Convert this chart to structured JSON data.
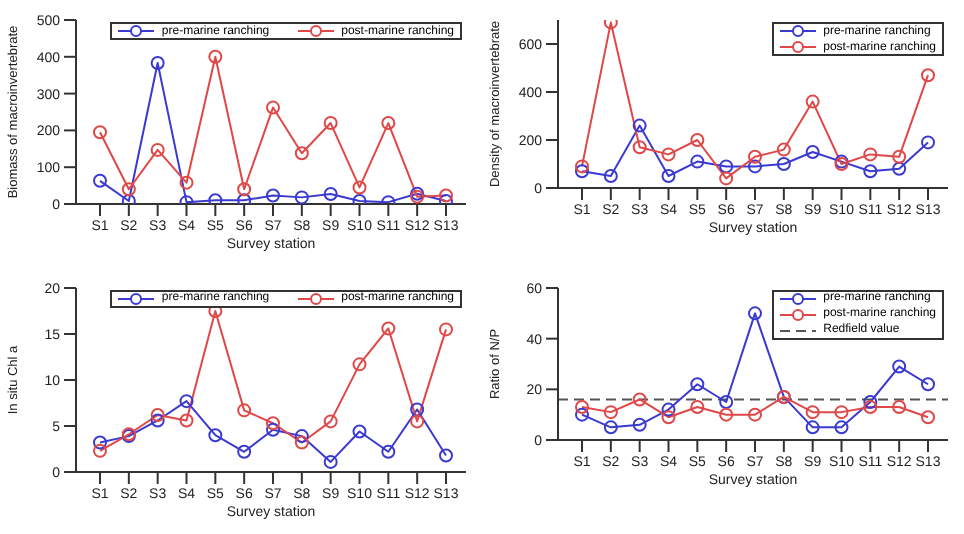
{
  "chart_data": [
    {
      "type": "line",
      "xlabel": "Survey station",
      "ylabel": "Biomass of macroinvertebrate",
      "categories": [
        "S1",
        "S2",
        "S3",
        "S4",
        "S5",
        "S6",
        "S7",
        "S8",
        "S9",
        "S10",
        "S11",
        "S12",
        "S13"
      ],
      "ylim": [
        0,
        500
      ],
      "yticks": [
        0,
        100,
        200,
        300,
        400,
        500
      ],
      "legend": "top",
      "marker": "circle",
      "line_style": "solid",
      "series": [
        {
          "name": "pre-marine ranching",
          "color": "#3a3ad0",
          "values": [
            63,
            8,
            383,
            5,
            10,
            10,
            23,
            18,
            27,
            8,
            5,
            28,
            8
          ]
        },
        {
          "name": "post-marine ranching",
          "color": "#e04848",
          "values": [
            195,
            40,
            147,
            58,
            400,
            40,
            262,
            138,
            220,
            45,
            220,
            20,
            23
          ]
        }
      ]
    },
    {
      "type": "line",
      "xlabel": "Survey station",
      "ylabel": "Density of macroinvertebrate",
      "categories": [
        "S1",
        "S2",
        "S3",
        "S4",
        "S5",
        "S6",
        "S7",
        "S8",
        "S9",
        "S10",
        "S11",
        "S12",
        "S13"
      ],
      "ylim": [
        0,
        700
      ],
      "yticks": [
        0,
        200,
        400,
        600
      ],
      "legend": "top right",
      "marker": "circle",
      "line_style": "solid",
      "series": [
        {
          "name": "pre-marine ranching",
          "color": "#3a3ad0",
          "values": [
            70,
            50,
            260,
            50,
            110,
            90,
            90,
            100,
            150,
            110,
            70,
            80,
            190
          ]
        },
        {
          "name": "post-marine ranching",
          "color": "#e04848",
          "values": [
            90,
            690,
            170,
            140,
            200,
            40,
            130,
            160,
            360,
            100,
            140,
            130,
            470
          ]
        }
      ]
    },
    {
      "type": "line",
      "xlabel": "Survey station",
      "ylabel": "In situ Chl a",
      "categories": [
        "S1",
        "S2",
        "S3",
        "S4",
        "S5",
        "S6",
        "S7",
        "S8",
        "S9",
        "S10",
        "S11",
        "S12",
        "S13"
      ],
      "ylim": [
        0,
        20
      ],
      "yticks": [
        0,
        5,
        10,
        15,
        20
      ],
      "legend": "top",
      "marker": "circle",
      "line_style": "solid",
      "series": [
        {
          "name": "pre-marine ranching",
          "color": "#3a3ad0",
          "values": [
            3.2,
            3.9,
            5.6,
            7.7,
            4.0,
            2.2,
            4.6,
            3.9,
            1.1,
            4.4,
            2.2,
            6.8,
            1.8
          ]
        },
        {
          "name": "post-marine ranching",
          "color": "#e04848",
          "values": [
            2.3,
            4.1,
            6.2,
            5.6,
            17.5,
            6.7,
            5.3,
            3.2,
            5.5,
            11.7,
            15.6,
            5.5,
            15.5
          ]
        }
      ]
    },
    {
      "type": "line",
      "xlabel": "Survey station",
      "ylabel": "Ratio of N/P",
      "categories": [
        "S1",
        "S2",
        "S3",
        "S4",
        "S5",
        "S6",
        "S7",
        "S8",
        "S9",
        "S10",
        "S11",
        "S12",
        "S13"
      ],
      "ylim": [
        0,
        60
      ],
      "yticks": [
        0,
        20,
        40,
        60
      ],
      "legend": "top right",
      "marker": "circle",
      "line_style": "solid",
      "series": [
        {
          "name": "pre-marine ranching",
          "color": "#3a3ad0",
          "values": [
            10,
            5,
            6,
            12,
            22,
            15,
            50,
            17,
            5,
            5,
            15,
            29,
            22
          ]
        },
        {
          "name": "post-marine ranching",
          "color": "#e04848",
          "values": [
            13,
            11,
            16,
            9,
            13,
            10,
            10,
            17,
            11,
            11,
            13,
            13,
            9
          ]
        }
      ],
      "ref_lines": [
        {
          "axis": "y",
          "value": 16,
          "label": "Redfield value",
          "color": "#555555",
          "line_style": "dashed"
        }
      ]
    }
  ]
}
